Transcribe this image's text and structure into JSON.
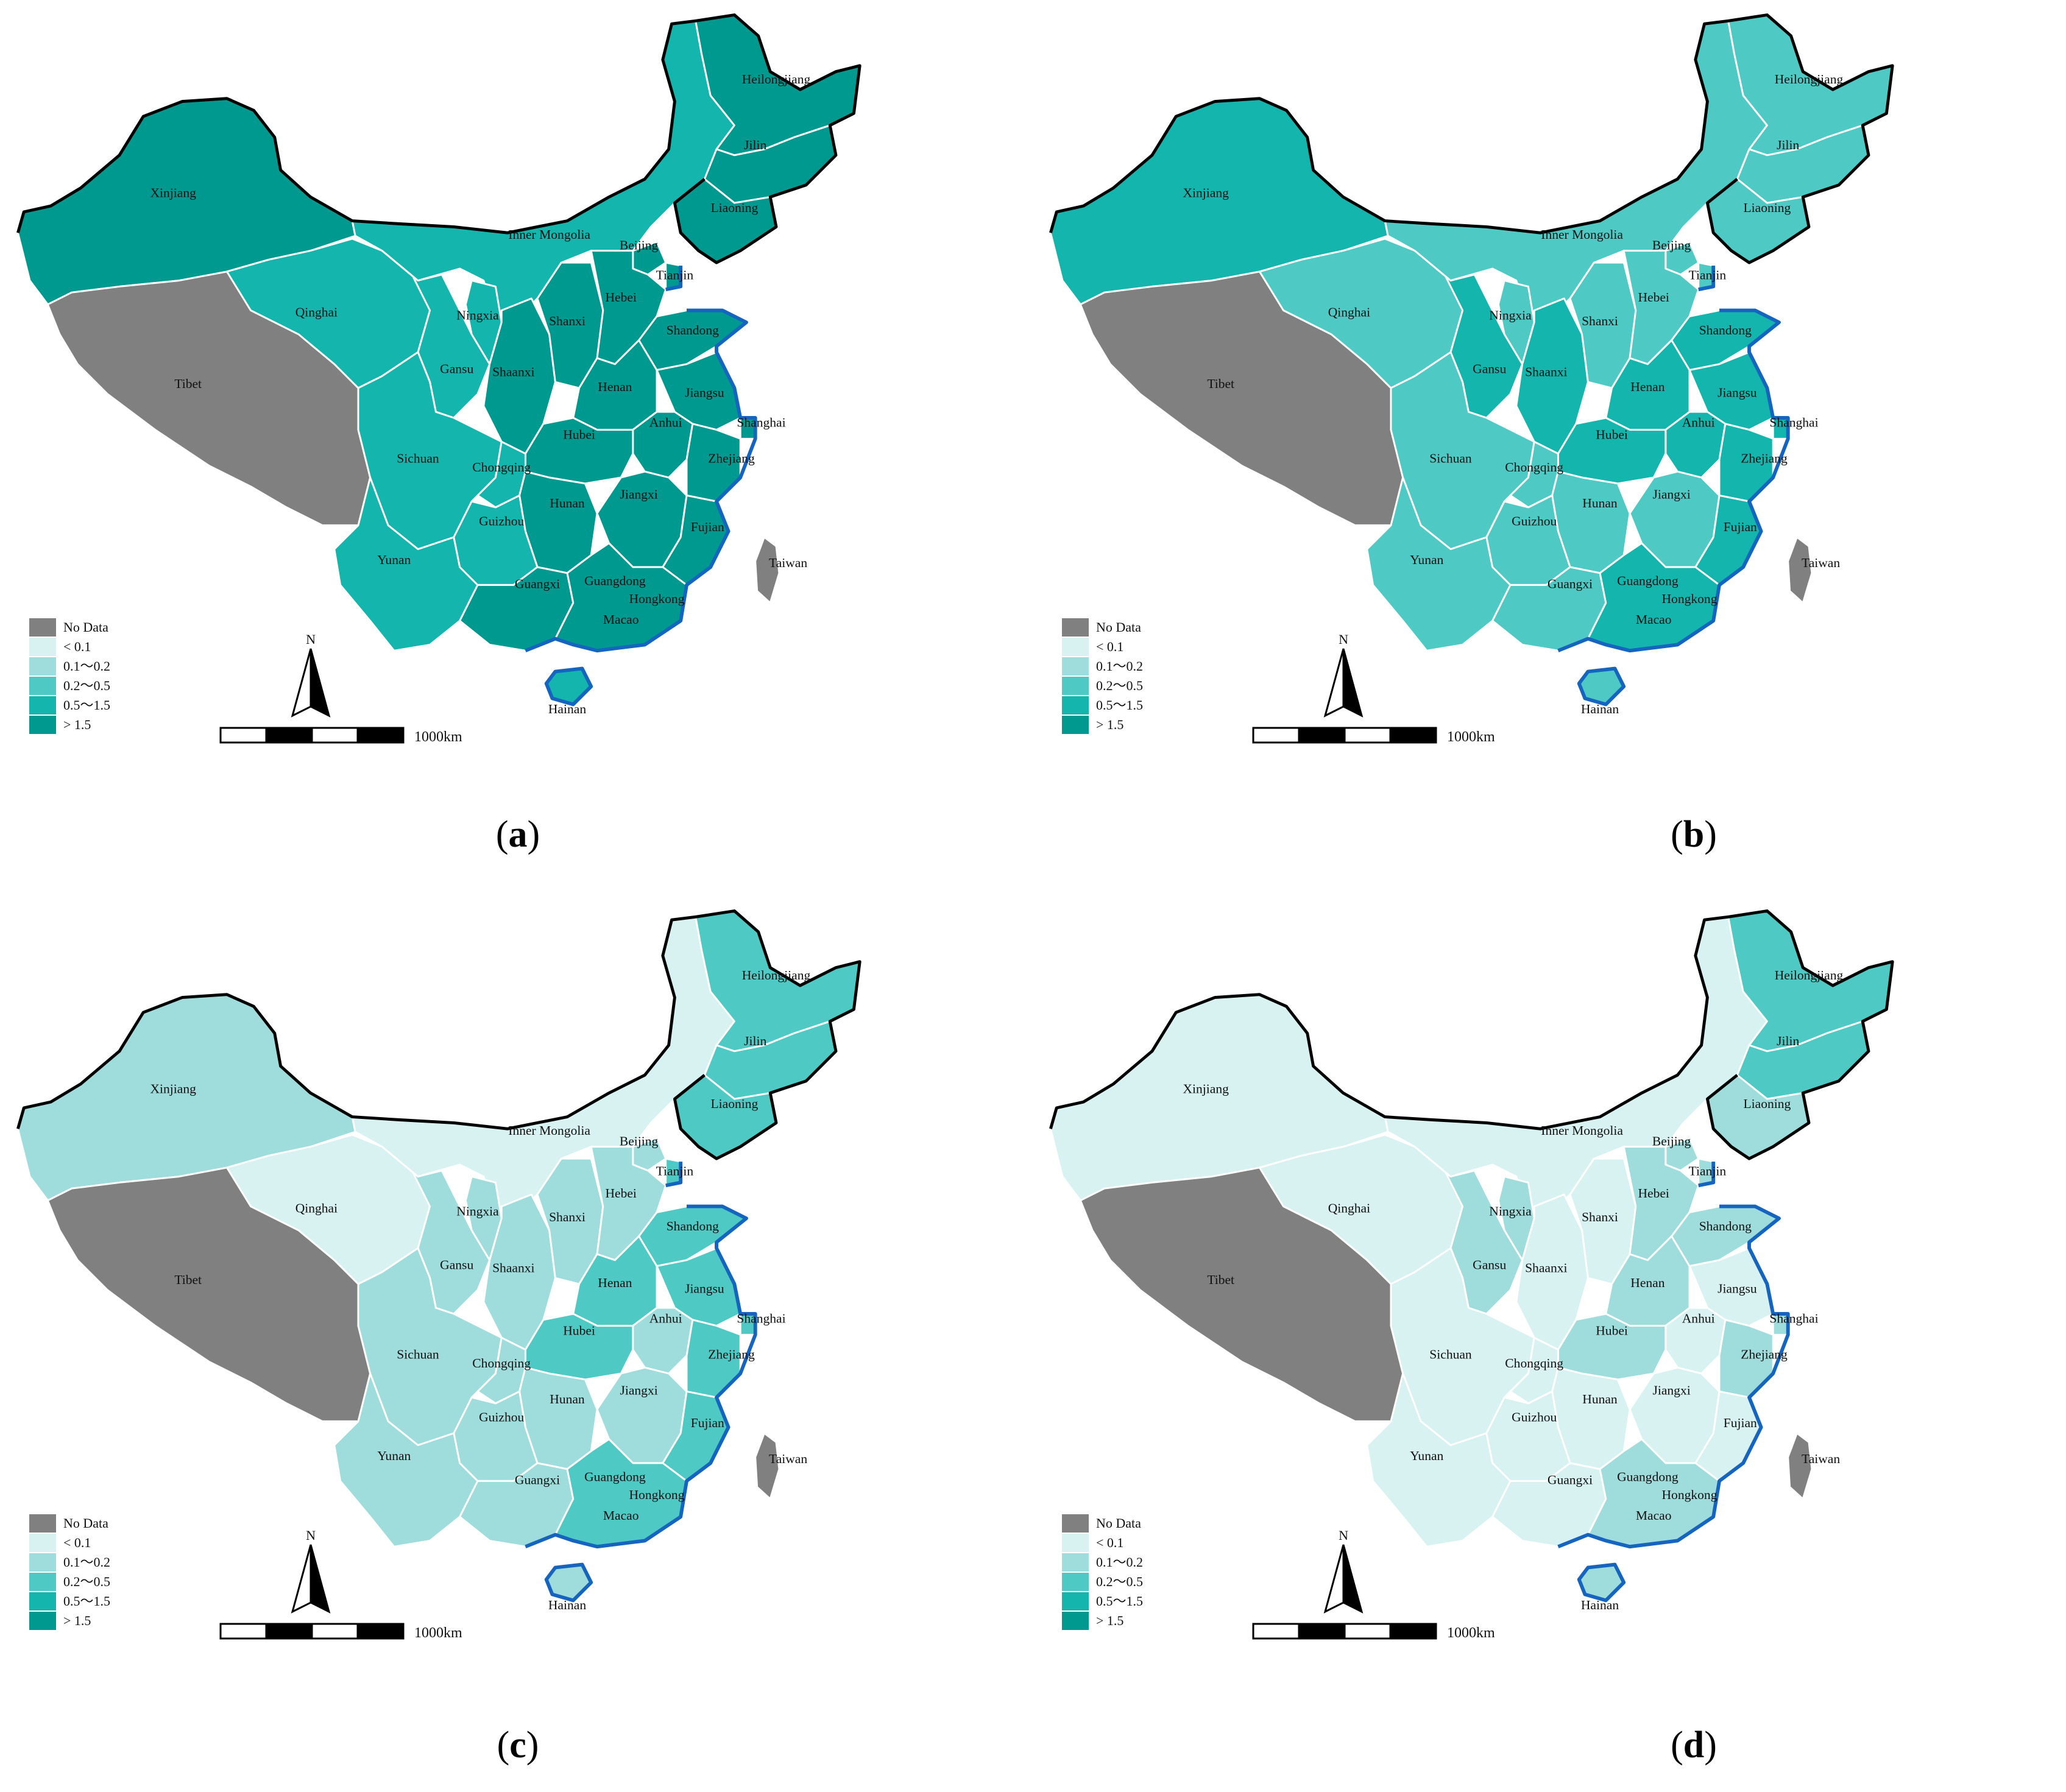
{
  "colors": {
    "no_data": "#808080",
    "lt_0_1": "#d8f1f1",
    "0_1_to_0_2": "#9fdcdc",
    "0_2_to_0_5": "#4ec9c4",
    "0_5_to_1_5": "#14b5ac",
    "gt_1_5": "#00998f",
    "border_white": "#ffffff",
    "outline": "#000000",
    "coast_blue": "#1565c0"
  },
  "legend": {
    "items": [
      {
        "key": "no_data",
        "label": "No Data"
      },
      {
        "key": "lt_0_1",
        "label": "< 0.1"
      },
      {
        "key": "0_1_to_0_2",
        "label": "0.1～0.2"
      },
      {
        "key": "0_2_to_0_5",
        "label": "0.2～0.5"
      },
      {
        "key": "0_5_to_1_5",
        "label": "0.5～1.5"
      },
      {
        "key": "gt_1_5",
        "label": "> 1.5"
      }
    ]
  },
  "north_label": "N",
  "scale_label": "1000km",
  "panels": [
    {
      "id": "a",
      "caption_letter": "a",
      "classes": {
        "Xinjiang": "gt_1_5",
        "Tibet": "no_data",
        "Qinghai": "0_5_to_1_5",
        "Gansu": "0_5_to_1_5",
        "Inner Mongolia": "0_5_to_1_5",
        "Ningxia": "0_5_to_1_5",
        "Shaanxi": "gt_1_5",
        "Shanxi": "gt_1_5",
        "Heilongjiang": "gt_1_5",
        "Jilin": "gt_1_5",
        "Liaoning": "gt_1_5",
        "Beijing": "gt_1_5",
        "Tianjin": "gt_1_5",
        "Hebei": "gt_1_5",
        "Shandong": "gt_1_5",
        "Henan": "gt_1_5",
        "Jiangsu": "gt_1_5",
        "Anhui": "gt_1_5",
        "Shanghai": "gt_1_5",
        "Zhejiang": "gt_1_5",
        "Hubei": "gt_1_5",
        "Sichuan": "0_5_to_1_5",
        "Chongqing": "0_5_to_1_5",
        "Hunan": "gt_1_5",
        "Jiangxi": "gt_1_5",
        "Fujian": "gt_1_5",
        "Guizhou": "0_5_to_1_5",
        "Yunan": "0_5_to_1_5",
        "Guangxi": "gt_1_5",
        "Guangdong": "gt_1_5",
        "Hainan": "0_5_to_1_5",
        "Taiwan": "no_data"
      }
    },
    {
      "id": "b",
      "caption_letter": "b",
      "classes": {
        "Xinjiang": "0_5_to_1_5",
        "Tibet": "no_data",
        "Qinghai": "0_2_to_0_5",
        "Gansu": "0_5_to_1_5",
        "Inner Mongolia": "0_2_to_0_5",
        "Ningxia": "0_2_to_0_5",
        "Shaanxi": "0_5_to_1_5",
        "Shanxi": "0_2_to_0_5",
        "Heilongjiang": "0_2_to_0_5",
        "Jilin": "0_2_to_0_5",
        "Liaoning": "0_2_to_0_5",
        "Beijing": "0_2_to_0_5",
        "Tianjin": "0_2_to_0_5",
        "Hebei": "0_2_to_0_5",
        "Shandong": "0_5_to_1_5",
        "Henan": "0_5_to_1_5",
        "Jiangsu": "0_5_to_1_5",
        "Anhui": "0_5_to_1_5",
        "Shanghai": "0_5_to_1_5",
        "Zhejiang": "0_5_to_1_5",
        "Hubei": "0_5_to_1_5",
        "Sichuan": "0_2_to_0_5",
        "Chongqing": "0_2_to_0_5",
        "Hunan": "0_2_to_0_5",
        "Jiangxi": "0_2_to_0_5",
        "Fujian": "0_5_to_1_5",
        "Guizhou": "0_2_to_0_5",
        "Yunan": "0_2_to_0_5",
        "Guangxi": "0_2_to_0_5",
        "Guangdong": "0_5_to_1_5",
        "Hainan": "0_2_to_0_5",
        "Taiwan": "no_data"
      }
    },
    {
      "id": "c",
      "caption_letter": "c",
      "classes": {
        "Xinjiang": "0_1_to_0_2",
        "Tibet": "no_data",
        "Qinghai": "lt_0_1",
        "Gansu": "0_1_to_0_2",
        "Inner Mongolia": "lt_0_1",
        "Ningxia": "0_1_to_0_2",
        "Shaanxi": "0_1_to_0_2",
        "Shanxi": "0_1_to_0_2",
        "Heilongjiang": "0_2_to_0_5",
        "Jilin": "0_2_to_0_5",
        "Liaoning": "0_2_to_0_5",
        "Beijing": "0_1_to_0_2",
        "Tianjin": "0_2_to_0_5",
        "Hebei": "0_1_to_0_2",
        "Shandong": "0_2_to_0_5",
        "Henan": "0_2_to_0_5",
        "Jiangsu": "0_2_to_0_5",
        "Anhui": "0_1_to_0_2",
        "Shanghai": "0_2_to_0_5",
        "Zhejiang": "0_2_to_0_5",
        "Hubei": "0_2_to_0_5",
        "Sichuan": "0_1_to_0_2",
        "Chongqing": "0_1_to_0_2",
        "Hunan": "0_1_to_0_2",
        "Jiangxi": "0_1_to_0_2",
        "Fujian": "0_2_to_0_5",
        "Guizhou": "0_1_to_0_2",
        "Yunan": "0_1_to_0_2",
        "Guangxi": "0_1_to_0_2",
        "Guangdong": "0_2_to_0_5",
        "Hainan": "0_1_to_0_2",
        "Taiwan": "no_data"
      }
    },
    {
      "id": "d",
      "caption_letter": "d",
      "classes": {
        "Xinjiang": "lt_0_1",
        "Tibet": "no_data",
        "Qinghai": "lt_0_1",
        "Gansu": "0_1_to_0_2",
        "Inner Mongolia": "lt_0_1",
        "Ningxia": "0_1_to_0_2",
        "Shaanxi": "lt_0_1",
        "Shanxi": "lt_0_1",
        "Heilongjiang": "0_2_to_0_5",
        "Jilin": "0_2_to_0_5",
        "Liaoning": "0_1_to_0_2",
        "Beijing": "0_1_to_0_2",
        "Tianjin": "0_1_to_0_2",
        "Hebei": "0_1_to_0_2",
        "Shandong": "0_1_to_0_2",
        "Henan": "0_1_to_0_2",
        "Jiangsu": "lt_0_1",
        "Anhui": "lt_0_1",
        "Shanghai": "0_1_to_0_2",
        "Zhejiang": "0_1_to_0_2",
        "Hubei": "0_1_to_0_2",
        "Sichuan": "lt_0_1",
        "Chongqing": "lt_0_1",
        "Hunan": "lt_0_1",
        "Jiangxi": "lt_0_1",
        "Fujian": "lt_0_1",
        "Guizhou": "lt_0_1",
        "Yunan": "lt_0_1",
        "Guangxi": "lt_0_1",
        "Guangdong": "0_1_to_0_2",
        "Hainan": "0_1_to_0_2",
        "Taiwan": "no_data"
      }
    }
  ],
  "province_labels": {
    "Xinjiang": "Xinjiang",
    "Tibet": "Tibet",
    "Qinghai": "Qinghai",
    "Gansu": "Gansu",
    "Inner Mongolia": "Inner Mongolia",
    "Ningxia": "Ningxia",
    "Shaanxi": "Shaanxi",
    "Shanxi": "Shanxi",
    "Heilongjiang": "Heilongjiang",
    "Jilin": "Jilin",
    "Liaoning": "Liaoning",
    "Beijing": "Beijing",
    "Tianjin": "Tianjin",
    "Hebei": "Hebei",
    "Shandong": "Shandong",
    "Henan": "Henan",
    "Jiangsu": "Jiangsu",
    "Anhui": "Anhui",
    "Shanghai": "Shanghai",
    "Zhejiang": "Zhejiang",
    "Hubei": "Hubei",
    "Sichuan": "Sichuan",
    "Chongqing": "Chongqing",
    "Hunan": "Hunan",
    "Jiangxi": "Jiangxi",
    "Fujian": "Fujian",
    "Guizhou": "Guizhou",
    "Yunan": "Yunan",
    "Guangxi": "Guangxi",
    "Guangdong": "Guangdong",
    "Hainan": "Hainan",
    "Taiwan": "Taiwan",
    "Hongkong": "Hongkong",
    "Macao": "Macao"
  }
}
